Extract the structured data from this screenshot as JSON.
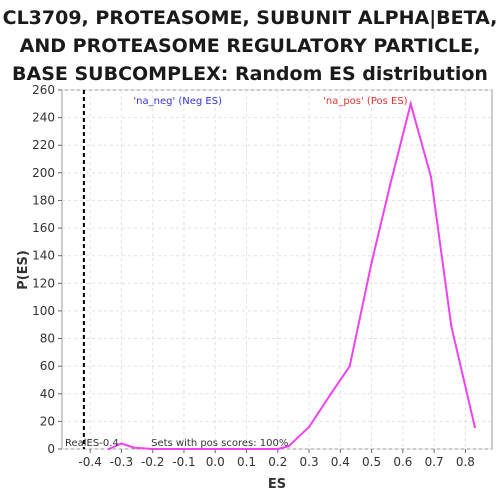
{
  "chart_data": {
    "type": "line",
    "title": "CL3709, PROTEASOME, SUBUNIT ALPHA|BETA, AND PROTEASOME REGULATORY PARTICLE, BASE SUBCOMPLEX: Random ES distribution",
    "xlabel": "ES",
    "ylabel": "P(ES)",
    "xlim": [
      -0.49,
      0.885
    ],
    "ylim": [
      0,
      260
    ],
    "x_ticks": [
      -0.4,
      -0.3,
      -0.2,
      -0.1,
      0.0,
      0.1,
      0.2,
      0.3,
      0.4,
      0.5,
      0.6,
      0.7,
      0.8
    ],
    "x_tick_labels": [
      "-0.4",
      "-0.3",
      "-0.2",
      "-0.1",
      "0.0",
      "0.1",
      "0.2",
      "0.3",
      "0.4",
      "0.5",
      "0.6",
      "0.7",
      "0.8"
    ],
    "y_ticks": [
      0,
      20,
      40,
      60,
      80,
      100,
      120,
      140,
      160,
      180,
      200,
      220,
      240,
      260
    ],
    "y_tick_labels": [
      "0",
      "20",
      "40",
      "60",
      "80",
      "100",
      "120",
      "140",
      "160",
      "180",
      "200",
      "220",
      "240",
      "260"
    ],
    "grid": true,
    "series": [
      {
        "color": "#ee44ee",
        "x": [
          -0.34,
          -0.3,
          -0.26,
          -0.2,
          -0.1,
          0.0,
          0.1,
          0.2,
          0.235,
          0.3,
          0.37,
          0.43,
          0.5,
          0.56,
          0.625,
          0.69,
          0.755,
          0.83
        ],
        "y": [
          0,
          4,
          1,
          0,
          0,
          0,
          0,
          0,
          2,
          16,
          40,
          60,
          135,
          192,
          250,
          197,
          89,
          16
        ]
      }
    ],
    "real_es": {
      "x": -0.42,
      "label": "RealES-0.4",
      "color": "#000000"
    },
    "annotations": {
      "neg": {
        "text": "'na_neg' (Neg ES)",
        "color": "#3333dd"
      },
      "pos": {
        "text": "'na_pos' (Pos ES)",
        "color": "#dd3333"
      },
      "pos_scores": {
        "text": "Sets with pos scores: 100%",
        "color": "#333333"
      }
    }
  }
}
